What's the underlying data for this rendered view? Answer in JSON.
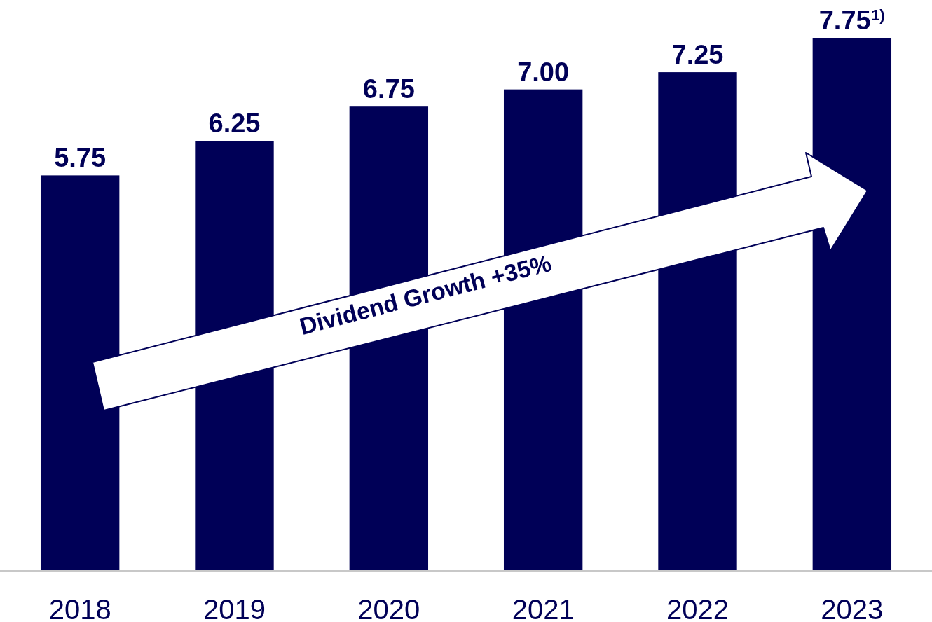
{
  "chart_data": {
    "type": "bar",
    "categories": [
      "2018",
      "2019",
      "2020",
      "2021",
      "2022",
      "2023"
    ],
    "values": [
      5.75,
      6.25,
      6.75,
      7.0,
      7.25,
      7.75
    ],
    "value_labels": [
      "5.75",
      "6.25",
      "6.75",
      "7.00",
      "7.25",
      "7.75$^{1)}$"
    ],
    "color": "#000057",
    "annotations": [
      "Dividend Growth +35%"
    ]
  }
}
